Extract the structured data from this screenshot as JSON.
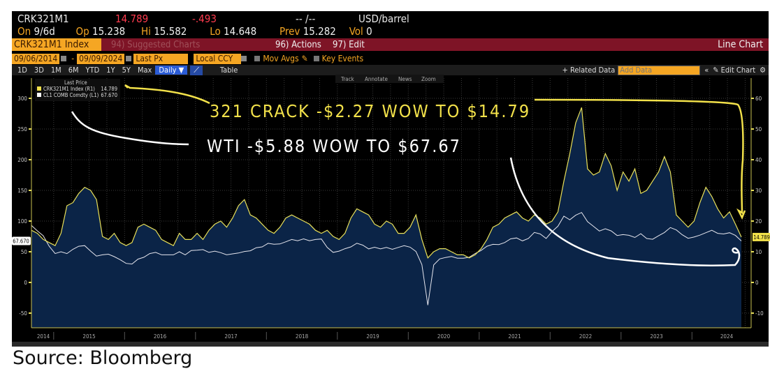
{
  "header": {
    "ticker": "CRK321M1",
    "last": "14.789",
    "change": "-.493",
    "time": "-- /--",
    "unit": "USD/barrel",
    "on_label": "On",
    "on_value": "9/6d",
    "op_label": "Op",
    "op_value": "15.238",
    "hi_label": "Hi",
    "hi_value": "15.582",
    "lo_label": "Lo",
    "lo_value": "14.648",
    "prev_label": "Prev",
    "prev_value": "15.282",
    "vol_label": "Vol",
    "vol_value": "0"
  },
  "menubar": {
    "security": "CRK321M1 Index",
    "suggested": "94) Suggested Charts",
    "actions": "96) Actions",
    "edit": "97) Edit",
    "chart_type": "Line Chart"
  },
  "controls": {
    "start_date": "09/06/2014",
    "end_date": "09/09/2024",
    "dash": "-",
    "field": "Last Px",
    "currency": "Local CCY",
    "mov_avgs": "Mov Avgs",
    "key_events": "Key Events"
  },
  "periods": [
    "1D",
    "3D",
    "1M",
    "6M",
    "YTD",
    "1Y",
    "5Y",
    "Max"
  ],
  "frequency": "Daily ▼",
  "table_label": "Table",
  "toolbar": {
    "related": "+ Related Data",
    "add_data_placeholder": "Add Data",
    "edit_chart": "Edit Chart"
  },
  "chart_tools": [
    "Track",
    "Annotate",
    "News",
    "Zoom"
  ],
  "annotations": {
    "crack": "321 CRACK -$2.27 WOW TO $14.79",
    "wti": "WTI -$5.88 WOW TO $67.67"
  },
  "source": "Source: Bloomberg",
  "chart_data": {
    "type": "area",
    "legend_title": "Last Price",
    "legend_position": "top-left",
    "grid": true,
    "x_start": "2014-09",
    "x_end": "2024-09",
    "xticks": [
      "2014",
      "2015",
      "2016",
      "2017",
      "2018",
      "2019",
      "2020",
      "2021",
      "2022",
      "2023",
      "2024"
    ],
    "left_axis": {
      "ylim": [
        -50,
        300
      ],
      "ticks": [
        -50,
        0,
        50,
        100,
        150,
        200,
        250,
        300
      ],
      "last_label": "67.670"
    },
    "right_axis": {
      "ylim": [
        -10,
        60
      ],
      "ticks": [
        -10,
        0,
        10,
        20,
        30,
        40,
        50,
        60
      ],
      "last_label": "14.789"
    },
    "series": [
      {
        "name": "CRK321M1 Index (R1)",
        "last": "14.789",
        "axis": "right",
        "color": "#e8e05a",
        "fill": "#0b2447",
        "values": [
          17,
          16,
          14,
          13,
          12,
          16,
          25,
          26,
          29,
          31,
          30,
          27,
          15,
          14,
          16,
          13,
          12,
          13,
          18,
          19,
          18,
          17,
          14,
          13,
          12,
          16,
          14,
          14,
          16,
          14,
          17,
          19,
          20,
          18,
          21,
          25,
          27,
          22,
          21,
          19,
          17,
          16,
          18,
          21,
          22,
          21,
          20,
          19,
          17,
          16,
          17,
          15,
          14,
          16,
          21,
          24,
          23,
          22,
          19,
          18,
          20,
          19,
          16,
          16,
          18,
          22,
          14,
          8,
          10,
          11,
          11,
          10,
          9,
          9,
          8,
          9,
          11,
          14,
          18,
          19,
          21,
          22,
          23,
          21,
          20,
          22,
          21,
          19,
          20,
          23,
          33,
          42,
          52,
          57,
          37,
          35,
          36,
          42,
          38,
          30,
          36,
          33,
          37,
          29,
          30,
          33,
          36,
          41,
          36,
          22,
          20,
          18,
          20,
          26,
          31,
          28,
          24,
          21,
          23,
          19,
          14.79
        ]
      },
      {
        "name": "CL1 COMB Comdty (L1)",
        "last": "67.670",
        "axis": "left",
        "color": "#e6e6ee",
        "values": [
          93,
          84,
          76,
          59,
          47,
          50,
          47,
          54,
          59,
          60,
          51,
          43,
          45,
          46,
          42,
          37,
          31,
          30,
          38,
          41,
          47,
          49,
          45,
          45,
          45,
          50,
          45,
          52,
          52.5,
          53.5,
          49,
          51,
          48.5,
          45,
          46.6,
          48,
          50.5,
          51.6,
          56.6,
          57.9,
          63.7,
          62.2,
          62.7,
          66.3,
          70,
          67.9,
          71,
          68,
          70,
          70.8,
          57,
          49,
          51,
          55,
          58,
          63.9,
          60.8,
          54.7,
          57.4,
          54.8,
          57,
          54,
          57,
          59.9,
          57.5,
          50.5,
          29,
          -37,
          28.5,
          38.3,
          40.7,
          42.3,
          39.6,
          39.6,
          41,
          47,
          52,
          59,
          62,
          61.7,
          65,
          71,
          72.5,
          67.7,
          71.6,
          81.5,
          79,
          71.7,
          83,
          91.6,
          108,
          102,
          109.5,
          114,
          99,
          91.5,
          83.8,
          87.5,
          84,
          76.5,
          78,
          76.8,
          73.3,
          79.4,
          71.6,
          70.3,
          76,
          81.4,
          89.4,
          85.6,
          77.7,
          71.9,
          74,
          77,
          81,
          85,
          80,
          79,
          81,
          76.6,
          67.67
        ]
      }
    ]
  }
}
